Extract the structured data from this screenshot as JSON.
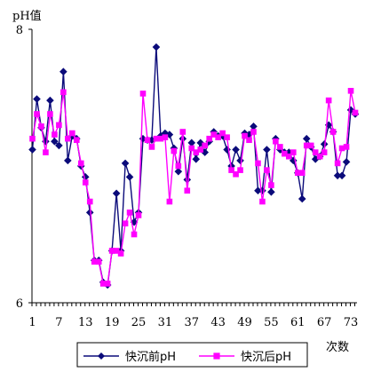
{
  "chart_data": {
    "type": "line",
    "ylabel": "pH值",
    "xlabel": "次数",
    "ylim": [
      6,
      8
    ],
    "xlim": [
      1,
      80
    ],
    "yticks": [
      "6",
      "8"
    ],
    "xticks": [
      "1",
      "7",
      "13",
      "19",
      "25",
      "31",
      "37",
      "43",
      "49",
      "55",
      "61",
      "67",
      "73"
    ],
    "legend_position": "bottom",
    "grid": false,
    "series": [
      {
        "name": "快沉前pH",
        "color": "#0b0b7a",
        "marker": "diamond",
        "values": [
          7.12,
          7.49,
          7.28,
          7.18,
          7.48,
          7.18,
          7.15,
          7.69,
          7.04,
          7.22,
          7.2,
          7.0,
          6.92,
          6.66,
          6.31,
          6.31,
          6.15,
          6.13,
          6.38,
          6.8,
          6.38,
          7.02,
          6.92,
          6.59,
          6.66,
          7.2,
          7.19,
          7.19,
          7.87,
          7.22,
          7.24,
          7.23,
          7.13,
          6.96,
          7.2,
          6.9,
          7.17,
          7.05,
          7.17,
          7.1,
          7.18,
          7.25,
          7.22,
          7.22,
          7.12,
          7.0,
          7.12,
          7.04,
          7.24,
          7.23,
          7.29,
          6.82,
          6.82,
          7.12,
          6.81,
          7.2,
          7.12,
          7.1,
          7.1,
          7.04,
          6.95,
          6.76,
          7.2,
          7.14,
          7.05,
          7.07,
          7.16,
          7.3,
          7.25,
          6.93,
          6.93,
          7.03,
          7.41,
          7.38
        ]
      },
      {
        "name": "快沉后pH",
        "color": "#ff00ff",
        "marker": "square",
        "values": [
          7.2,
          7.38,
          7.29,
          7.1,
          7.38,
          7.23,
          7.3,
          7.54,
          7.2,
          7.24,
          7.19,
          7.02,
          6.88,
          6.74,
          6.3,
          6.3,
          6.14,
          6.14,
          6.38,
          6.38,
          6.36,
          6.58,
          6.66,
          6.5,
          6.64,
          7.53,
          7.19,
          7.14,
          7.2,
          7.2,
          7.21,
          6.74,
          7.11,
          7.0,
          7.25,
          6.82,
          7.13,
          7.1,
          7.12,
          7.15,
          7.2,
          7.23,
          7.21,
          7.24,
          7.21,
          6.97,
          6.94,
          6.97,
          7.22,
          7.19,
          7.25,
          7.02,
          6.74,
          6.97,
          6.86,
          7.18,
          7.14,
          7.09,
          7.07,
          7.1,
          6.95,
          6.95,
          7.15,
          7.15,
          7.1,
          7.07,
          7.1,
          7.48,
          7.25,
          7.02,
          7.13,
          7.14,
          7.55,
          7.39
        ]
      }
    ]
  }
}
